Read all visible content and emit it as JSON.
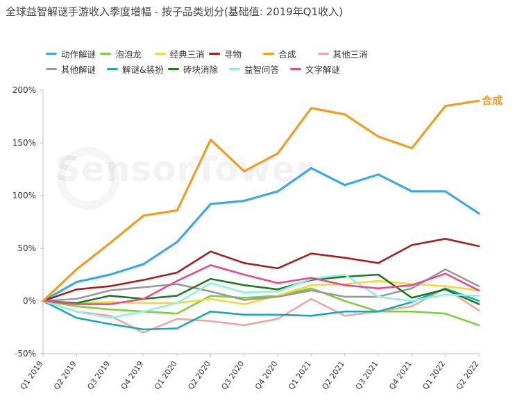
{
  "title": "全球益智解谜手游收入季度增幅 - 按子品类划分(基础值: 2019年Q1收入)",
  "watermark": "SensorTower",
  "chart_data": {
    "type": "line",
    "title": "全球益智解谜手游收入季度增幅 - 按子品类划分(基础值: 2019年Q1收入)",
    "xlabel": "",
    "ylabel": "",
    "ylim": [
      -50,
      200
    ],
    "yticks": [
      "-50%",
      "0%",
      "50%",
      "100%",
      "150%",
      "200%"
    ],
    "ytick_values": [
      -50,
      0,
      50,
      100,
      150,
      200
    ],
    "categories": [
      "Q1 2019",
      "Q2 2019",
      "Q3 2019",
      "Q4 2019",
      "Q1 2020",
      "Q2 2020",
      "Q3 2020",
      "Q4 2020",
      "Q1 2021",
      "Q2 2021",
      "Q3 2021",
      "Q4 2021",
      "Q1 2022",
      "Q2 2022"
    ],
    "legend_position": "top-left",
    "annotation": {
      "series": "合成",
      "text": "合成"
    },
    "series": [
      {
        "name": "动作解谜",
        "color": "#3ba9e6",
        "values": [
          0,
          18,
          25,
          35,
          56,
          92,
          95,
          104,
          126,
          110,
          120,
          104,
          104,
          83
        ]
      },
      {
        "name": "泡泡龙",
        "color": "#7ccf3e",
        "values": [
          0,
          -5,
          -8,
          -10,
          -12,
          5,
          3,
          5,
          12,
          0,
          -10,
          -10,
          -12,
          -23
        ]
      },
      {
        "name": "经典三消",
        "color": "#f5d63c",
        "values": [
          0,
          -2,
          -1,
          -2,
          -2,
          2,
          -3,
          5,
          15,
          16,
          19,
          16,
          14,
          10
        ]
      },
      {
        "name": "寻物",
        "color": "#a32020",
        "values": [
          0,
          11,
          14,
          20,
          27,
          47,
          36,
          31,
          45,
          41,
          36,
          53,
          59,
          52
        ]
      },
      {
        "name": "合成",
        "color": "#f39c1f",
        "values": [
          0,
          30,
          55,
          81,
          86,
          153,
          123,
          140,
          183,
          177,
          156,
          145,
          185,
          190
        ]
      },
      {
        "name": "其他三消",
        "color": "#f0a6a0",
        "values": [
          0,
          -10,
          -14,
          -30,
          -17,
          -19,
          -23,
          -17,
          2,
          -14,
          -10,
          -5,
          12,
          -9
        ]
      },
      {
        "name": "其他解谜",
        "color": "#999999",
        "values": [
          0,
          2,
          10,
          13,
          16,
          9,
          1,
          4,
          10,
          4,
          4,
          12,
          30,
          14
        ]
      },
      {
        "name": "解谜&装扮",
        "color": "#1aa9b4",
        "values": [
          0,
          -16,
          -22,
          -27,
          -26,
          -10,
          -13,
          -13,
          -14,
          -10,
          -10,
          -1,
          12,
          0
        ]
      },
      {
        "name": "砖块消除",
        "color": "#1e7a1e",
        "values": [
          0,
          -2,
          5,
          2,
          5,
          21,
          15,
          11,
          20,
          23,
          25,
          3,
          11,
          -3
        ]
      },
      {
        "name": "益智问答",
        "color": "#8ff0e0",
        "values": [
          0,
          -10,
          -16,
          -10,
          -2,
          17,
          8,
          9,
          21,
          25,
          4,
          0,
          6,
          5
        ]
      },
      {
        "name": "文字解谜",
        "color": "#e64b8c",
        "values": [
          0,
          -3,
          -3,
          2,
          19,
          34,
          25,
          17,
          22,
          15,
          12,
          15,
          26,
          10
        ]
      }
    ]
  }
}
